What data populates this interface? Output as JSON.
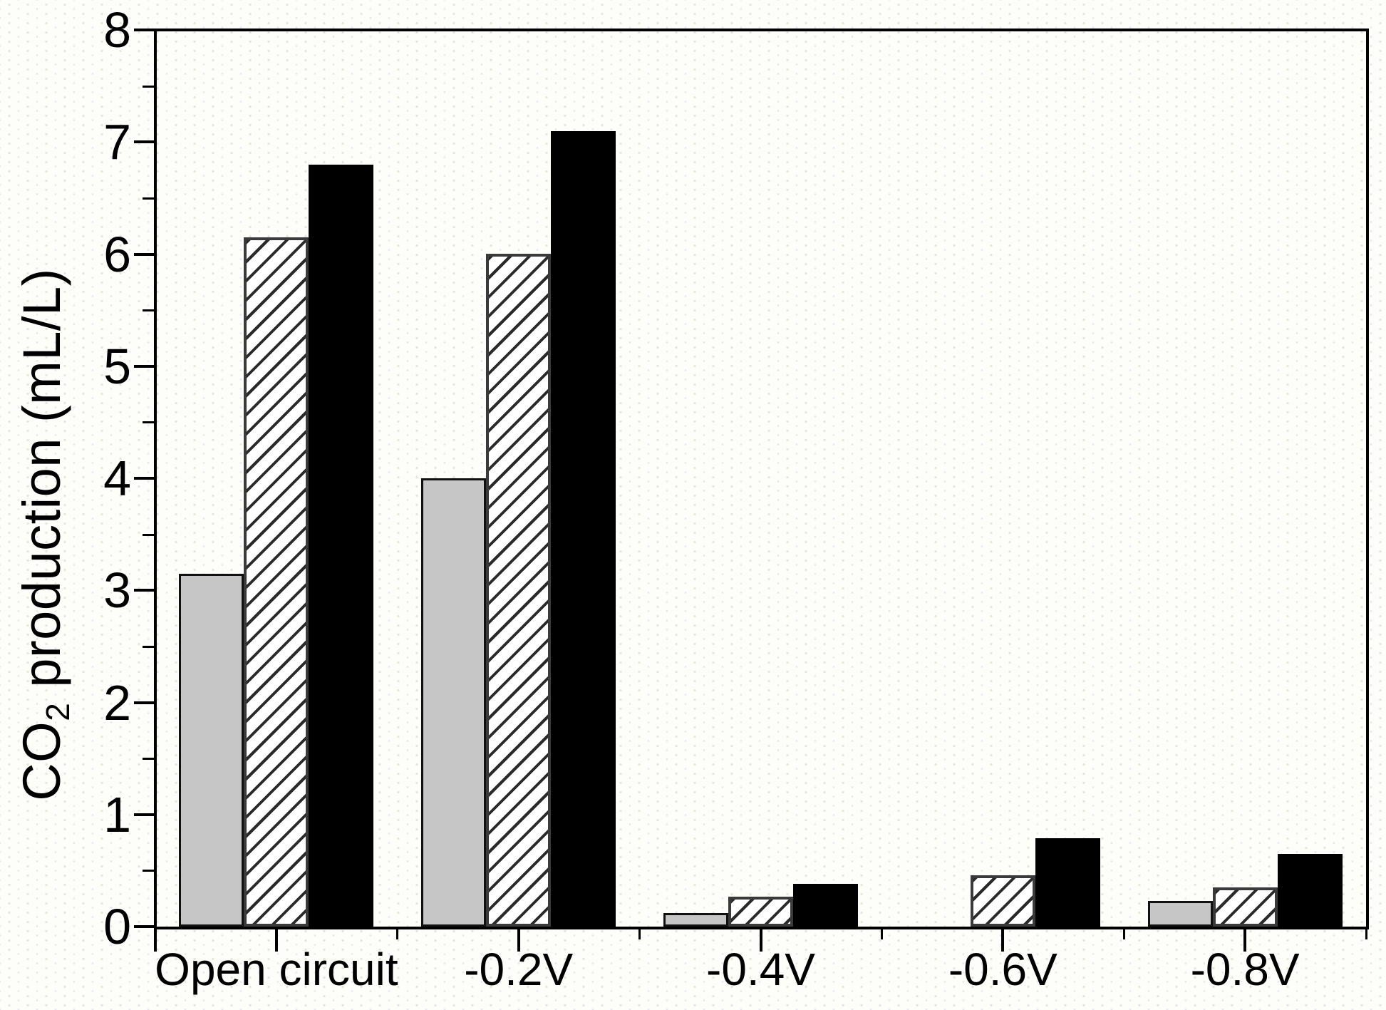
{
  "chart_data": {
    "type": "bar",
    "title": "",
    "xlabel": "",
    "ylabel": "CO2 production (mL/L)",
    "ylabel_parts": {
      "prefix": "CO",
      "sub": "2",
      "suffix": " production (mL/L)"
    },
    "ylim": [
      0,
      8
    ],
    "y_major_tick_step": 1,
    "y_minor_tick_step": 0.5,
    "y_tick_labels": [
      "0",
      "1",
      "2",
      "3",
      "4",
      "5",
      "6",
      "7",
      "8"
    ],
    "categories": [
      "Open circuit",
      "-0.2V",
      "-0.4V",
      "-0.6V",
      "-0.8V"
    ],
    "series": [
      {
        "name": "gray-solid-bar",
        "style": "solid-gray",
        "color": "#c6c6c6",
        "values": [
          3.15,
          4.0,
          0.12,
          0,
          0.23
        ]
      },
      {
        "name": "hatched-bar",
        "style": "diagonal-hatch",
        "color": "#ffffff",
        "hatch_color": "#2a2a2a",
        "values": [
          6.15,
          6.0,
          0.27,
          0.46,
          0.35
        ]
      },
      {
        "name": "black-solid-bar",
        "style": "solid-black",
        "color": "#000000",
        "values": [
          6.8,
          7.1,
          0.38,
          0.79,
          0.65
        ]
      }
    ],
    "legend": "none",
    "grid": "off",
    "plot_frame": "box"
  },
  "colors": {
    "axis": "#000000",
    "text": "#000000",
    "gray_bar": "#c6c6c6",
    "black_bar": "#000000",
    "background": "#fdfdfa"
  }
}
